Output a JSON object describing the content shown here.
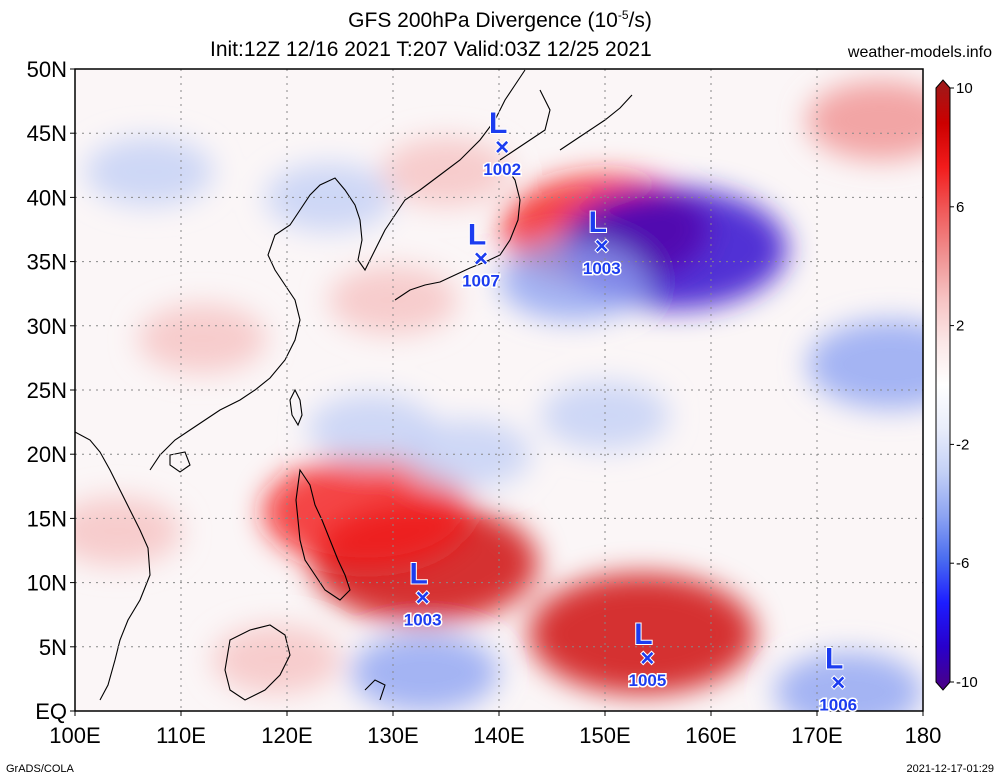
{
  "header": {
    "title_prefix": "GFS 200hPa Divergence (10",
    "title_exp": "-5",
    "title_suffix": "/s)",
    "subtitle": "Init:12Z 12/16 2021 T:207 Valid:03Z 12/25 2021",
    "site": "weather-models.info"
  },
  "footer": {
    "left": "GrADS/COLA",
    "right": "2021-12-17-01:29"
  },
  "map": {
    "lon_range": [
      100,
      180
    ],
    "lat_range": [
      0,
      50
    ],
    "lat_labels": [
      {
        "lat": 50,
        "label": "50N"
      },
      {
        "lat": 45,
        "label": "45N"
      },
      {
        "lat": 40,
        "label": "40N"
      },
      {
        "lat": 35,
        "label": "35N"
      },
      {
        "lat": 30,
        "label": "30N"
      },
      {
        "lat": 25,
        "label": "25N"
      },
      {
        "lat": 20,
        "label": "20N"
      },
      {
        "lat": 15,
        "label": "15N"
      },
      {
        "lat": 10,
        "label": "10N"
      },
      {
        "lat": 5,
        "label": "5N"
      },
      {
        "lat": 0,
        "label": "EQ"
      }
    ],
    "lon_labels": [
      {
        "lon": 100,
        "label": "100E"
      },
      {
        "lon": 110,
        "label": "110E"
      },
      {
        "lon": 120,
        "label": "120E"
      },
      {
        "lon": 130,
        "label": "130E"
      },
      {
        "lon": 140,
        "label": "140E"
      },
      {
        "lon": 150,
        "label": "150E"
      },
      {
        "lon": 160,
        "label": "160E"
      },
      {
        "lon": 170,
        "label": "170E"
      },
      {
        "lon": 180,
        "label": "180"
      }
    ],
    "lows": [
      {
        "lon": 140.3,
        "lat": 44.0,
        "pressure": "1002"
      },
      {
        "lon": 138.3,
        "lat": 35.3,
        "pressure": "1007"
      },
      {
        "lon": 149.7,
        "lat": 36.3,
        "pressure": "1003"
      },
      {
        "lon": 132.8,
        "lat": 8.9,
        "pressure": "1003"
      },
      {
        "lon": 154.0,
        "lat": 4.2,
        "pressure": "1005"
      },
      {
        "lon": 172.0,
        "lat": 2.3,
        "pressure": "1006"
      }
    ],
    "low_symbol": "L",
    "low_marker": "×",
    "colorbar": {
      "ticks": [
        {
          "value": 10,
          "label": "10"
        },
        {
          "value": 6,
          "label": "6"
        },
        {
          "value": 2,
          "label": "2"
        },
        {
          "value": -2,
          "label": "-2"
        },
        {
          "value": -6,
          "label": "-6"
        },
        {
          "value": -10,
          "label": "-10"
        }
      ],
      "colors": [
        "#4b0082",
        "#2800cc",
        "#1d1dff",
        "#4a6cf0",
        "#8da4f2",
        "#c3d0f6",
        "#e9edfb",
        "#ffffff",
        "#fbe6e6",
        "#f6c2c2",
        "#f09090",
        "#f05a5a",
        "#f21c1c",
        "#cc0000",
        "#9b1b1b"
      ]
    },
    "fields": [
      {
        "lon": 133.0,
        "lat": 11.5,
        "value": 8
      },
      {
        "lon": 127.5,
        "lat": 15.5,
        "value": 7
      },
      {
        "lon": 153.5,
        "lat": 6.0,
        "value": 8
      },
      {
        "lon": 150.0,
        "lat": 37.5,
        "value": 7
      },
      {
        "lon": 156.5,
        "lat": 36.0,
        "value": -8
      },
      {
        "lon": 147.0,
        "lat": 33.5,
        "value": -4
      },
      {
        "lon": 177.0,
        "lat": 27.0,
        "value": -5
      },
      {
        "lon": 112.0,
        "lat": 29.0,
        "value": 3
      },
      {
        "lon": 130.0,
        "lat": 32.0,
        "value": 3
      },
      {
        "lon": 128.0,
        "lat": 22.0,
        "value": -3
      },
      {
        "lon": 137.0,
        "lat": 20.0,
        "value": -3
      },
      {
        "lon": 150.0,
        "lat": 23.0,
        "value": -3
      },
      {
        "lon": 133.0,
        "lat": 3.0,
        "value": -4
      },
      {
        "lon": 173.0,
        "lat": 1.5,
        "value": -4
      },
      {
        "lon": 107.0,
        "lat": 42.0,
        "value": -3
      },
      {
        "lon": 124.0,
        "lat": 40.0,
        "value": -3
      },
      {
        "lon": 135.0,
        "lat": 42.0,
        "value": 3
      },
      {
        "lon": 176.0,
        "lat": 46.0,
        "value": 4
      },
      {
        "lon": 104.0,
        "lat": 14.0,
        "value": 3
      },
      {
        "lon": 119.0,
        "lat": 4.0,
        "value": 3
      }
    ]
  }
}
